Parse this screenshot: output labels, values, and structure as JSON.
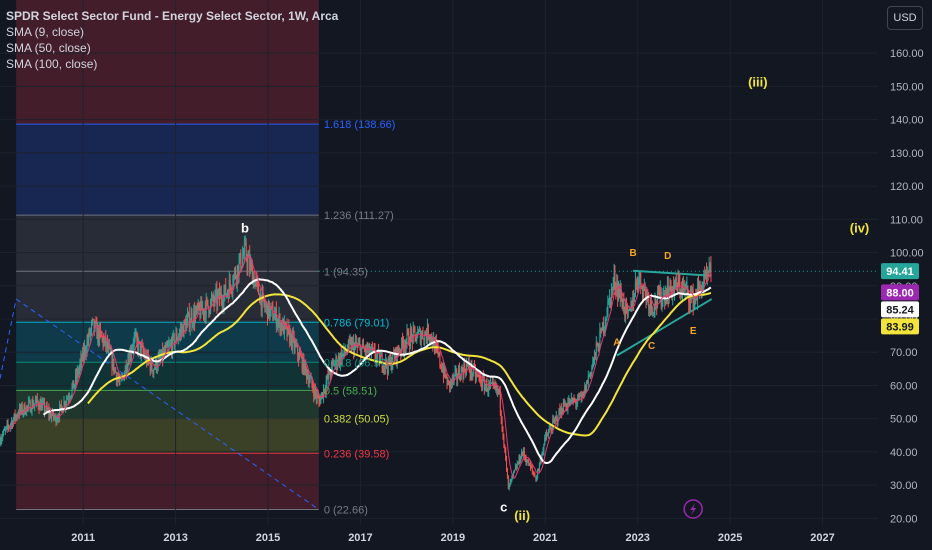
{
  "legend": {
    "title": "SPDR Select Sector Fund - Energy Select Sector, 1W, Arca",
    "indicators": [
      "SMA (9, close)",
      "SMA (50, close)",
      "SMA (100, close)"
    ]
  },
  "currency_button": "USD",
  "colors": {
    "background": "#131722",
    "candle_up": "#26a69a",
    "candle_down": "#ef5350",
    "sma9": "#e8386e",
    "sma50": "#ffffff",
    "sma100": "#f2e43a",
    "last_price": "#26a69a"
  },
  "chart_data": {
    "type": "candlestick",
    "symbol": "XLE",
    "interval": "1W",
    "xlim": [
      2009.2,
      2028.2
    ],
    "ylim": [
      18,
      176
    ],
    "y_ticks": [
      20,
      30,
      40,
      50,
      60,
      70,
      80,
      90,
      100,
      110,
      120,
      130,
      140,
      150,
      160
    ],
    "x_ticks": [
      {
        "year": 2011,
        "label": "2011"
      },
      {
        "year": 2013,
        "label": "2013"
      },
      {
        "year": 2015,
        "label": "2015"
      },
      {
        "year": 2017,
        "label": "2017"
      },
      {
        "year": 2019,
        "label": "2019"
      },
      {
        "year": 2021,
        "label": "2021"
      },
      {
        "year": 2023,
        "label": "2023"
      },
      {
        "year": 2025,
        "label": "2025"
      },
      {
        "year": 2027,
        "label": "2027"
      }
    ],
    "price_path": [
      [
        2009.2,
        44
      ],
      [
        2009.6,
        52
      ],
      [
        2010.0,
        55
      ],
      [
        2010.4,
        50
      ],
      [
        2010.8,
        60
      ],
      [
        2011.2,
        78
      ],
      [
        2011.5,
        72
      ],
      [
        2011.8,
        60
      ],
      [
        2012.1,
        74
      ],
      [
        2012.5,
        65
      ],
      [
        2012.9,
        72
      ],
      [
        2013.3,
        80
      ],
      [
        2013.7,
        84
      ],
      [
        2014.1,
        88
      ],
      [
        2014.5,
        100
      ],
      [
        2014.9,
        84
      ],
      [
        2015.2,
        80
      ],
      [
        2015.5,
        74
      ],
      [
        2015.8,
        65
      ],
      [
        2016.1,
        55
      ],
      [
        2016.4,
        66
      ],
      [
        2016.8,
        72
      ],
      [
        2017.2,
        70
      ],
      [
        2017.6,
        66
      ],
      [
        2018.0,
        74
      ],
      [
        2018.5,
        76
      ],
      [
        2018.9,
        60
      ],
      [
        2019.3,
        66
      ],
      [
        2019.7,
        60
      ],
      [
        2020.0,
        58
      ],
      [
        2020.2,
        29
      ],
      [
        2020.5,
        40
      ],
      [
        2020.8,
        32
      ],
      [
        2021.0,
        44
      ],
      [
        2021.4,
        54
      ],
      [
        2021.8,
        56
      ],
      [
        2022.2,
        75
      ],
      [
        2022.5,
        92
      ],
      [
        2022.8,
        80
      ],
      [
        2023.0,
        93
      ],
      [
        2023.3,
        84
      ],
      [
        2023.6,
        88
      ],
      [
        2023.9,
        90
      ],
      [
        2024.2,
        86
      ],
      [
        2024.5,
        92
      ],
      [
        2024.6,
        94.41
      ]
    ],
    "fibonacci": {
      "levels": [
        {
          "ratio": "0",
          "value": 22.66,
          "label": "0 (22.66)",
          "color": "#787b86"
        },
        {
          "ratio": "0.236",
          "value": 39.58,
          "label": "0.236 (39.58)",
          "color": "#f23645"
        },
        {
          "ratio": "0.382",
          "value": 50.05,
          "label": "0.382 (50.05)",
          "color": "#cddc39"
        },
        {
          "ratio": "0.5",
          "value": 58.51,
          "label": "0.5 (58.51)",
          "color": "#4caf50"
        },
        {
          "ratio": "0.618",
          "value": 66.97,
          "label": "0.618 (66.97)",
          "color": "#089981"
        },
        {
          "ratio": "0.786",
          "value": 79.01,
          "label": "0.786 (79.01)",
          "color": "#00bcd4"
        },
        {
          "ratio": "1",
          "value": 94.35,
          "label": "1 (94.35)",
          "color": "#787b86"
        },
        {
          "ratio": "1.236",
          "value": 111.27,
          "label": "1.236 (111.27)",
          "color": "#787b86"
        },
        {
          "ratio": "1.618",
          "value": 138.66,
          "label": "1.618 (138.66)",
          "color": "#2962ff"
        }
      ]
    },
    "wave_labels": [
      {
        "text": "b",
        "x": 2014.5,
        "y": 106,
        "color": "#ffffff"
      },
      {
        "text": "c",
        "x": 2020.1,
        "y": 22,
        "color": "#ffffff"
      },
      {
        "text": "(ii)",
        "x": 2020.5,
        "y": 19.5,
        "color": "#f2e43a"
      },
      {
        "text": "(iii)",
        "x": 2025.6,
        "y": 150,
        "color": "#f2e43a"
      },
      {
        "text": "(iv)",
        "x": 2027.8,
        "y": 106,
        "color": "#f2e43a"
      },
      {
        "text": "A",
        "x": 2022.55,
        "y": 72,
        "color": "#f5a623"
      },
      {
        "text": "B",
        "x": 2022.9,
        "y": 99,
        "color": "#f5a623"
      },
      {
        "text": "C",
        "x": 2023.3,
        "y": 71,
        "color": "#f5a623"
      },
      {
        "text": "D",
        "x": 2023.65,
        "y": 98,
        "color": "#f5a623"
      },
      {
        "text": "E",
        "x": 2024.2,
        "y": 75.5,
        "color": "#f5a623"
      }
    ],
    "price_labels": [
      {
        "text": "94.41",
        "value": 94.41,
        "bg": "#26a69a",
        "fg": "#ffffff"
      },
      {
        "text": "88.00",
        "value": 88.0,
        "bg": "#9c27b0",
        "fg": "#ffffff"
      },
      {
        "text": "85.24",
        "value": 85.24,
        "bg": "#ffffff",
        "fg": "#131722"
      },
      {
        "text": "83.99",
        "value": 83.99,
        "bg": "#f2e43a",
        "fg": "#131722"
      }
    ]
  }
}
